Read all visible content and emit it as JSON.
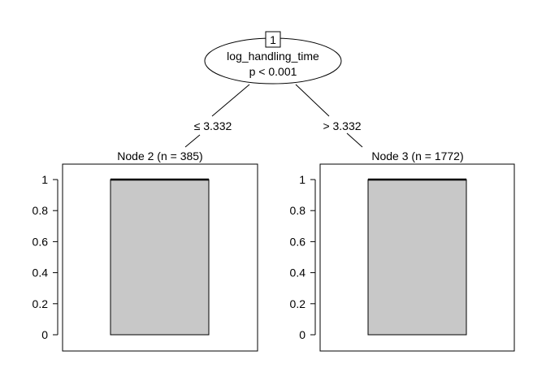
{
  "root": {
    "id": "1",
    "variable": "log_handling_time",
    "p_value": "p < 0.001"
  },
  "edges": {
    "left": "≤ 3.332",
    "right": "> 3.332"
  },
  "nodes": [
    {
      "title": "Node 2 (n = 385)",
      "box": {
        "min": 0,
        "q1": 0,
        "median": 1,
        "q3": 1,
        "max": 1
      }
    },
    {
      "title": "Node 3 (n = 1772)",
      "box": {
        "min": 0,
        "q1": 0,
        "median": 1,
        "q3": 1,
        "max": 1
      }
    }
  ],
  "y_ticks": [
    "0",
    "0.2",
    "0.4",
    "0.6",
    "0.8",
    "1"
  ],
  "colors": {
    "box_fill": "#c8c8c8",
    "stroke": "#000000"
  }
}
